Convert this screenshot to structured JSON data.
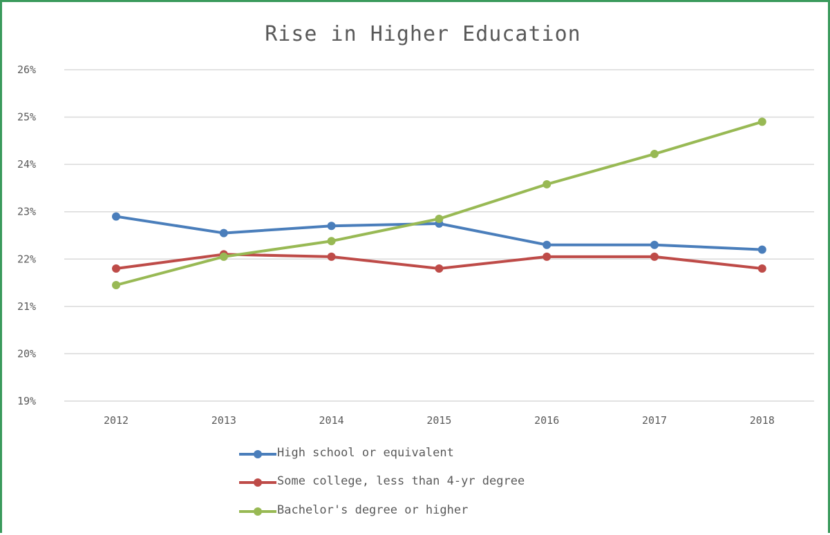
{
  "chart_data": {
    "type": "line",
    "title": "Rise in Higher Education",
    "categories": [
      "2012",
      "2013",
      "2014",
      "2015",
      "2016",
      "2017",
      "2018"
    ],
    "ylim": [
      19,
      26
    ],
    "y_ticks": [
      "19%",
      "20%",
      "21%",
      "22%",
      "23%",
      "24%",
      "25%",
      "26%"
    ],
    "grid": true,
    "legend_position": "bottom",
    "series": [
      {
        "name": "High school or equivalent",
        "color": "#4a7ebb",
        "values": [
          22.9,
          22.55,
          22.7,
          22.75,
          22.3,
          22.3,
          22.2
        ]
      },
      {
        "name": "Some college, less than 4-yr degree",
        "color": "#be4b48",
        "values": [
          21.8,
          22.1,
          22.05,
          21.8,
          22.05,
          22.05,
          21.8
        ]
      },
      {
        "name": "Bachelor's degree or higher",
        "color": "#98b954",
        "values": [
          21.45,
          22.05,
          22.38,
          22.85,
          23.58,
          24.22,
          24.9
        ]
      }
    ]
  }
}
